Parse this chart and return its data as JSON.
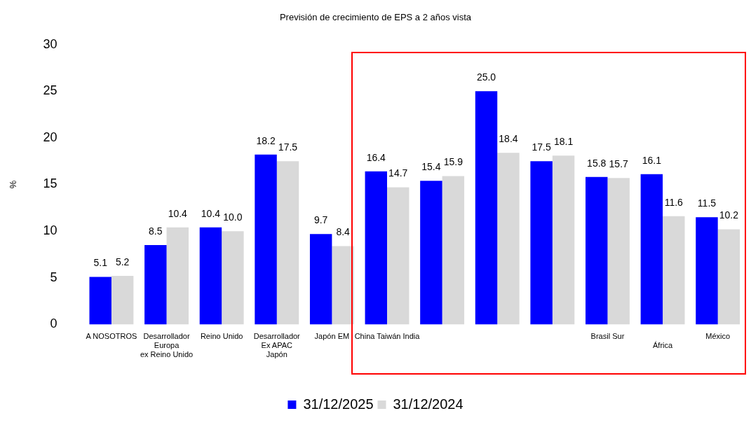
{
  "chart_data": {
    "type": "bar",
    "title": "Previsión de crecimiento de EPS a 2 años vista",
    "ylabel": "%",
    "categories": [
      "A NOSOTROS",
      "Desarrollador\nEuropa\nex Reino Unido",
      "Reino Unido",
      "Desarrollador\nEx APAC\nJapón",
      "Japón EM",
      "China Taiwán India",
      null,
      null,
      null,
      "Brasil Sur",
      "\nÁfrica",
      "México"
    ],
    "series": [
      {
        "name": "31/12/2025",
        "color": "#0000ff",
        "values": [
          5.1,
          8.5,
          10.4,
          18.2,
          9.7,
          16.4,
          15.4,
          25.0,
          17.5,
          15.8,
          16.1,
          11.5
        ],
        "value_labels": [
          "5.1",
          "8.5",
          "10.4",
          "18.2",
          "9.7",
          "16.4",
          "15.4",
          "25.0",
          "17.5",
          "15.8",
          "16.1",
          "11.5"
        ]
      },
      {
        "name": "31/12/2024",
        "color": "#d9d9d9",
        "values": [
          5.2,
          10.4,
          10.0,
          17.5,
          8.4,
          14.7,
          15.9,
          18.4,
          18.1,
          15.7,
          11.6,
          10.2
        ],
        "value_labels": [
          "5.2",
          "10.4",
          "10.0",
          "17.5",
          "8.4",
          "14.7",
          "15.9",
          "18.4",
          "18.1",
          "15.7",
          "11.6",
          "10.2"
        ]
      }
    ],
    "ylim": [
      0,
      30
    ],
    "yticks": [
      0,
      5,
      10,
      15,
      20,
      25,
      30
    ],
    "grid": false,
    "legend": "bottom"
  }
}
